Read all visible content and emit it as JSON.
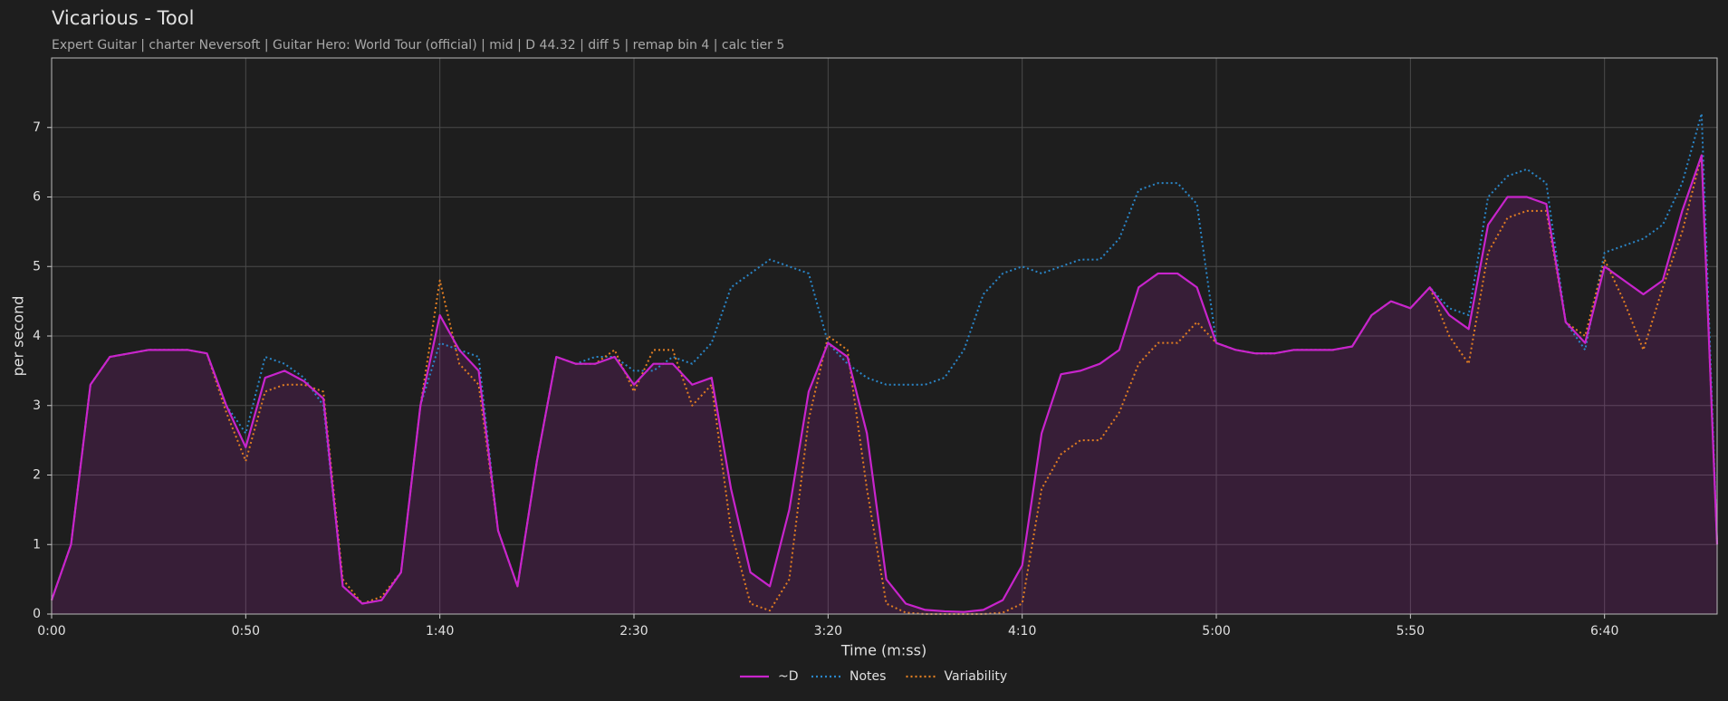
{
  "chart_data": {
    "type": "line",
    "title": "Vicarious - Tool",
    "subtitle": "Expert Guitar  |  charter Neversoft  |  Guitar Hero: World Tour (official)  |  mid  |  D 44.32  |  diff 5  |  remap bin 4  |  calc tier 5",
    "x_label": "Time (m:ss)",
    "y_label": "per second",
    "x": [
      0,
      5,
      10,
      15,
      20,
      25,
      30,
      35,
      40,
      45,
      50,
      55,
      60,
      65,
      70,
      75,
      80,
      85,
      90,
      95,
      100,
      105,
      110,
      115,
      120,
      125,
      130,
      135,
      140,
      145,
      150,
      155,
      160,
      165,
      170,
      175,
      180,
      185,
      190,
      195,
      200,
      205,
      210,
      215,
      220,
      225,
      230,
      235,
      240,
      245,
      250,
      255,
      260,
      265,
      270,
      275,
      280,
      285,
      290,
      295,
      300,
      305,
      310,
      315,
      320,
      325,
      330,
      335,
      340,
      345,
      350,
      355,
      360,
      365,
      370,
      375,
      380,
      385,
      390,
      395,
      400,
      405,
      410,
      415,
      420,
      425,
      429
    ],
    "series": [
      {
        "name": "~D",
        "color": "#c824cc",
        "style": "solid",
        "fill": true,
        "values": [
          0.2,
          1.0,
          3.3,
          3.7,
          3.75,
          3.8,
          3.8,
          3.8,
          3.75,
          3.0,
          2.4,
          3.4,
          3.5,
          3.35,
          3.1,
          0.4,
          0.15,
          0.2,
          0.6,
          3.0,
          4.3,
          3.8,
          3.5,
          1.2,
          0.4,
          2.2,
          3.7,
          3.6,
          3.6,
          3.7,
          3.3,
          3.6,
          3.6,
          3.3,
          3.4,
          1.8,
          0.6,
          0.4,
          1.5,
          3.2,
          3.9,
          3.7,
          2.6,
          0.5,
          0.15,
          0.06,
          0.04,
          0.03,
          0.06,
          0.2,
          0.7,
          2.6,
          3.45,
          3.5,
          3.6,
          3.8,
          4.7,
          4.9,
          4.9,
          4.7,
          3.9,
          3.8,
          3.75,
          3.75,
          3.8,
          3.8,
          3.8,
          3.85,
          4.3,
          4.5,
          4.4,
          4.7,
          4.3,
          4.1,
          5.6,
          6.0,
          6.0,
          5.9,
          4.2,
          3.9,
          5.0,
          4.8,
          4.6,
          4.8,
          5.8,
          6.6,
          1.0
        ]
      },
      {
        "name": "Notes",
        "color": "#2a86c8",
        "style": "dotted",
        "values": [
          0.2,
          1.0,
          3.3,
          3.7,
          3.75,
          3.8,
          3.8,
          3.8,
          3.75,
          3.0,
          2.6,
          3.7,
          3.6,
          3.4,
          3.0,
          0.4,
          0.15,
          0.2,
          0.6,
          3.0,
          3.9,
          3.8,
          3.7,
          1.2,
          0.4,
          2.2,
          3.7,
          3.6,
          3.7,
          3.7,
          3.5,
          3.5,
          3.7,
          3.6,
          3.9,
          4.7,
          4.9,
          5.1,
          5.0,
          4.9,
          3.9,
          3.6,
          3.4,
          3.3,
          3.3,
          3.3,
          3.4,
          3.8,
          4.6,
          4.9,
          5.0,
          4.9,
          5.0,
          5.1,
          5.1,
          5.4,
          6.1,
          6.2,
          6.2,
          5.9,
          3.9,
          3.8,
          3.75,
          3.75,
          3.8,
          3.8,
          3.8,
          3.85,
          4.3,
          4.5,
          4.4,
          4.7,
          4.4,
          4.3,
          6.0,
          6.3,
          6.4,
          6.2,
          4.2,
          3.8,
          5.2,
          5.3,
          5.4,
          5.6,
          6.2,
          7.2,
          1.0
        ]
      },
      {
        "name": "Variability",
        "color": "#e07d22",
        "style": "dotted",
        "values": [
          0.2,
          1.0,
          3.3,
          3.7,
          3.75,
          3.8,
          3.8,
          3.8,
          3.75,
          2.9,
          2.2,
          3.2,
          3.3,
          3.3,
          3.2,
          0.5,
          0.15,
          0.25,
          0.6,
          3.0,
          4.8,
          3.6,
          3.3,
          1.2,
          0.4,
          2.2,
          3.7,
          3.6,
          3.6,
          3.8,
          3.2,
          3.8,
          3.8,
          3.0,
          3.3,
          1.2,
          0.15,
          0.05,
          0.5,
          2.8,
          4.0,
          3.8,
          1.8,
          0.15,
          0.02,
          0.0,
          0.0,
          0.0,
          0.0,
          0.02,
          0.15,
          1.8,
          2.3,
          2.5,
          2.5,
          2.9,
          3.6,
          3.9,
          3.9,
          4.2,
          3.9,
          3.8,
          3.75,
          3.75,
          3.8,
          3.8,
          3.8,
          3.85,
          4.3,
          4.5,
          4.4,
          4.7,
          4.0,
          3.6,
          5.2,
          5.7,
          5.8,
          5.8,
          4.2,
          4.0,
          5.1,
          4.5,
          3.8,
          4.7,
          5.5,
          6.6,
          1.0
        ]
      }
    ],
    "xlim": [
      0,
      429
    ],
    "ylim": [
      0,
      8
    ],
    "xticks": [
      {
        "value": 0,
        "label": "0:00"
      },
      {
        "value": 50,
        "label": "0:50"
      },
      {
        "value": 100,
        "label": "1:40"
      },
      {
        "value": 150,
        "label": "2:30"
      },
      {
        "value": 200,
        "label": "3:20"
      },
      {
        "value": 250,
        "label": "4:10"
      },
      {
        "value": 300,
        "label": "5:00"
      },
      {
        "value": 350,
        "label": "5:50"
      },
      {
        "value": 400,
        "label": "6:40"
      }
    ],
    "yticks": [
      0,
      1,
      2,
      3,
      4,
      5,
      6,
      7
    ],
    "grid": true,
    "legend": "bottom"
  }
}
